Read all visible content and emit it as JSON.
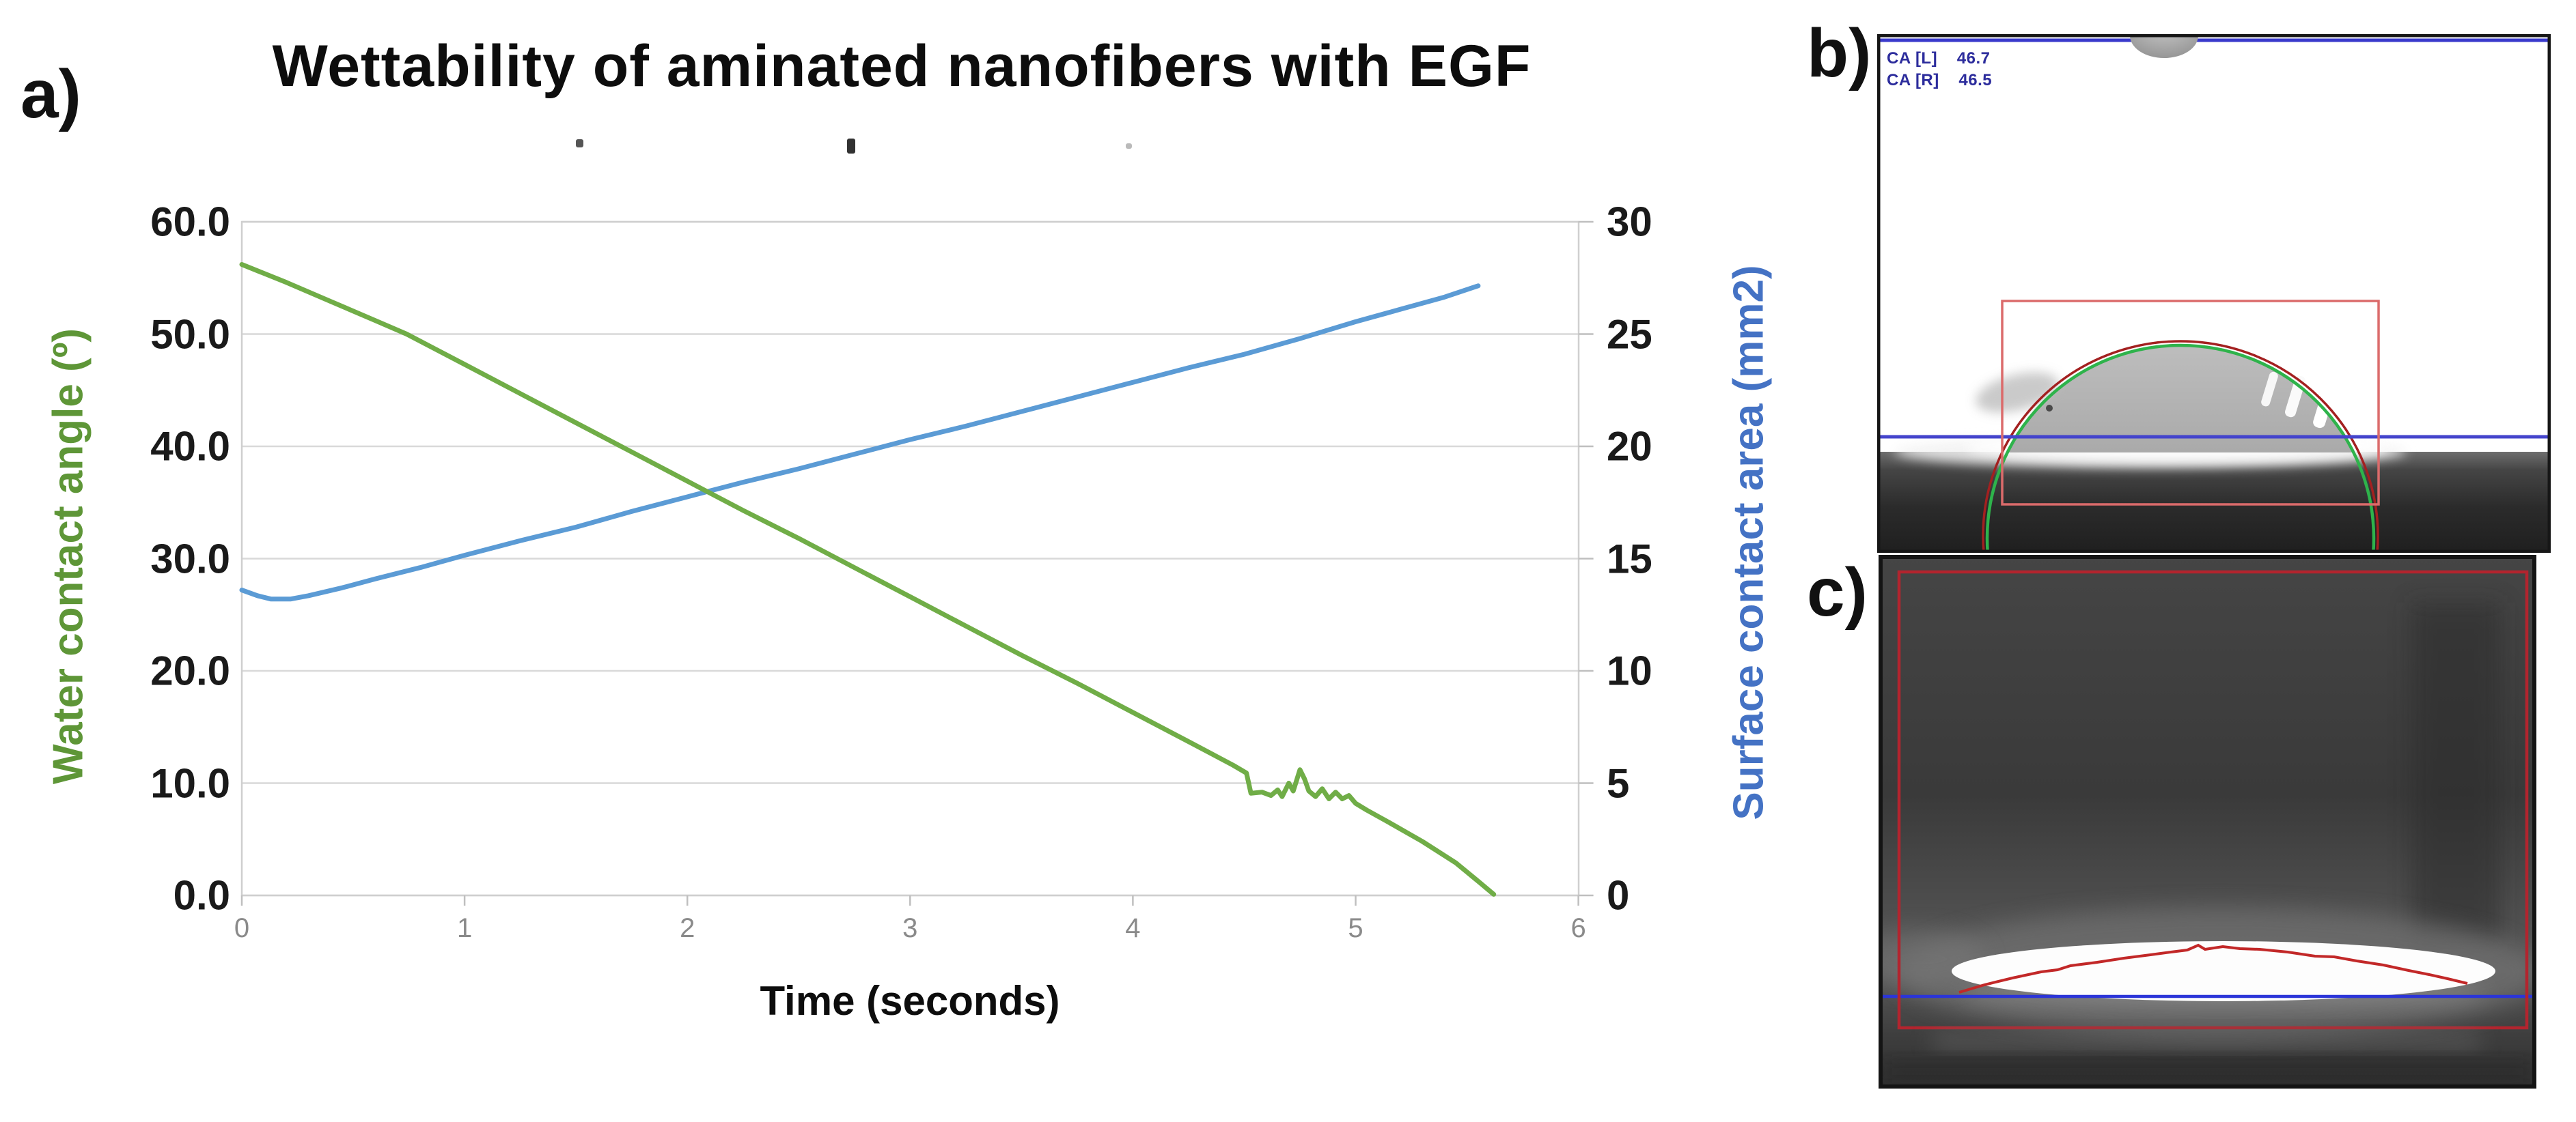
{
  "figure": {
    "panel_a_label": "a)",
    "panel_b_label": "b)",
    "panel_c_label": "c)"
  },
  "chart_data": {
    "type": "line",
    "title": "Wettability of aminated nanofibers with EGF",
    "grid": true,
    "legend_position": "none",
    "x_axis": {
      "label": "Time (seconds)",
      "range": [
        0,
        6
      ],
      "ticks": [
        "0",
        "1",
        "2",
        "3",
        "4",
        "5",
        "6"
      ]
    },
    "left_axis": {
      "label": "Water contact angle (º)",
      "range": [
        0,
        60
      ],
      "ticks": [
        "60.0",
        "50.0",
        "40.0",
        "30.0",
        "20.0",
        "10.0",
        "0.0"
      ],
      "title_color": "#5E9637"
    },
    "right_axis": {
      "label": "Surface contact area (mm2)",
      "range": [
        0,
        30
      ],
      "ticks": [
        "30",
        "25",
        "20",
        "15",
        "10",
        "5",
        "0"
      ],
      "title_color": "#4472C4"
    },
    "series": [
      {
        "name": "Water contact angle",
        "axis": "left",
        "color": "#70AD47",
        "points": [
          [
            0,
            56.2
          ],
          [
            0.2,
            54.6
          ],
          [
            0.4,
            52.9
          ],
          [
            0.6,
            51.2
          ],
          [
            0.74,
            50.0
          ],
          [
            1.0,
            47.3
          ],
          [
            1.25,
            44.7
          ],
          [
            1.5,
            42.1
          ],
          [
            1.75,
            39.5
          ],
          [
            2.0,
            36.9
          ],
          [
            2.25,
            34.3
          ],
          [
            2.5,
            31.8
          ],
          [
            2.75,
            29.2
          ],
          [
            3.0,
            26.6
          ],
          [
            3.25,
            24.0
          ],
          [
            3.5,
            21.4
          ],
          [
            3.75,
            18.9
          ],
          [
            4.0,
            16.3
          ],
          [
            4.25,
            13.7
          ],
          [
            4.45,
            11.6
          ],
          [
            4.51,
            10.9
          ],
          [
            4.53,
            9.1
          ],
          [
            4.58,
            9.2
          ],
          [
            4.62,
            8.9
          ],
          [
            4.65,
            9.4
          ],
          [
            4.67,
            8.8
          ],
          [
            4.7,
            10.0
          ],
          [
            4.72,
            9.3
          ],
          [
            4.75,
            11.2
          ],
          [
            4.77,
            10.4
          ],
          [
            4.79,
            9.3
          ],
          [
            4.82,
            8.8
          ],
          [
            4.85,
            9.5
          ],
          [
            4.88,
            8.6
          ],
          [
            4.91,
            9.2
          ],
          [
            4.94,
            8.6
          ],
          [
            4.97,
            8.9
          ],
          [
            5.0,
            8.2
          ],
          [
            5.05,
            7.6
          ],
          [
            5.15,
            6.5
          ],
          [
            5.3,
            4.8
          ],
          [
            5.45,
            2.9
          ],
          [
            5.56,
            1.1
          ],
          [
            5.62,
            0.1
          ]
        ]
      },
      {
        "name": "Surface contact area",
        "axis": "right",
        "color": "#5B9BD5",
        "points": [
          [
            0,
            13.6
          ],
          [
            0.07,
            13.35
          ],
          [
            0.13,
            13.2
          ],
          [
            0.22,
            13.2
          ],
          [
            0.3,
            13.35
          ],
          [
            0.45,
            13.7
          ],
          [
            0.6,
            14.1
          ],
          [
            0.8,
            14.6
          ],
          [
            1.0,
            15.15
          ],
          [
            1.25,
            15.8
          ],
          [
            1.5,
            16.4
          ],
          [
            1.75,
            17.1
          ],
          [
            2.0,
            17.75
          ],
          [
            2.25,
            18.4
          ],
          [
            2.5,
            19.0
          ],
          [
            2.75,
            19.65
          ],
          [
            3.0,
            20.3
          ],
          [
            3.25,
            20.9
          ],
          [
            3.5,
            21.55
          ],
          [
            3.75,
            22.2
          ],
          [
            4.0,
            22.85
          ],
          [
            4.25,
            23.5
          ],
          [
            4.5,
            24.1
          ],
          [
            4.75,
            24.8
          ],
          [
            5.0,
            25.55
          ],
          [
            5.2,
            26.1
          ],
          [
            5.4,
            26.65
          ],
          [
            5.55,
            27.15
          ]
        ]
      }
    ]
  },
  "panel_b": {
    "ca_line1": "CA [L]    46.7",
    "ca_line2": "CA [R]    46.5"
  },
  "colors": {
    "green_line": "#70AD47",
    "blue_line": "#5B9BD5",
    "gridline": "#D9D9D9",
    "droplet_fit_circle": "#2EB34B",
    "overlay_red": "#C23030",
    "overlay_blue": "#3A3ACC"
  }
}
